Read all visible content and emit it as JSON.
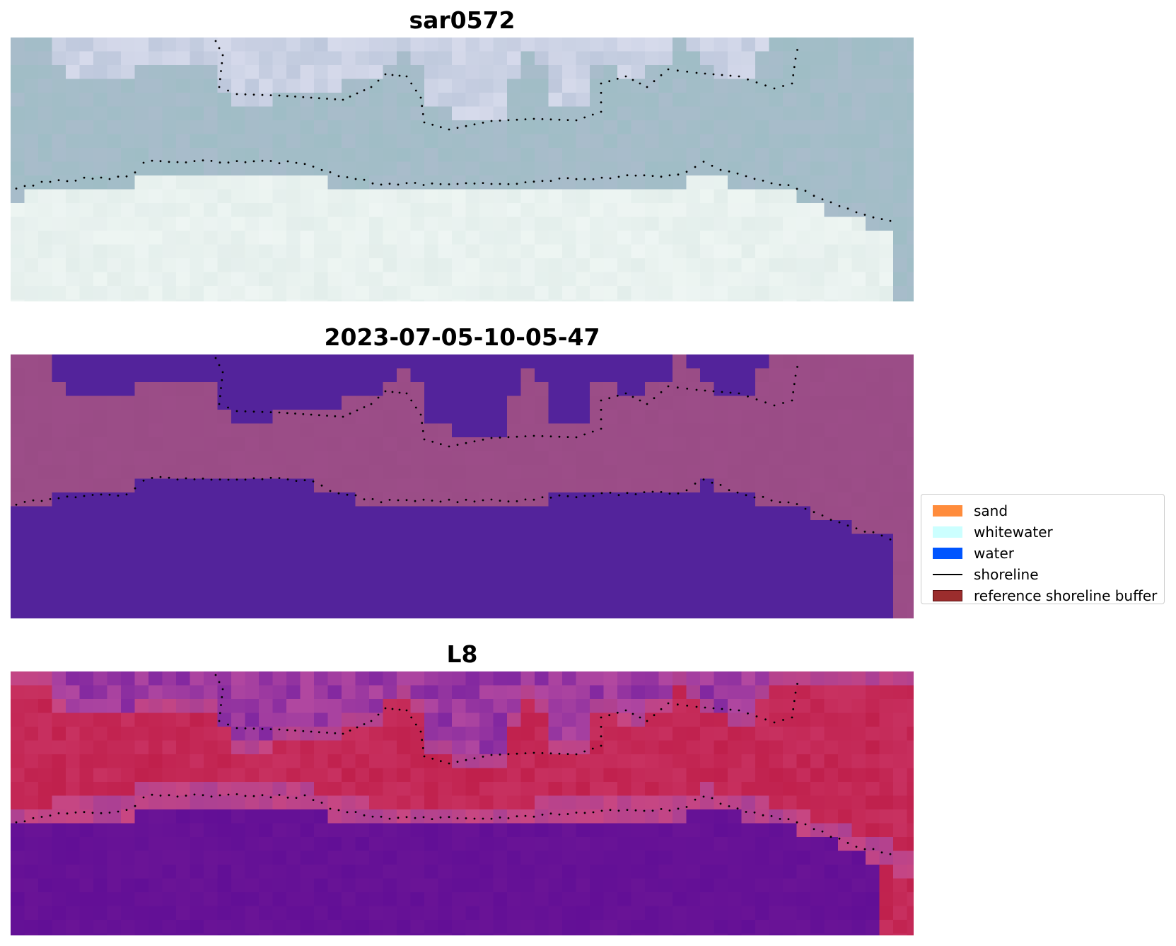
{
  "panels": [
    {
      "title": "sar0572",
      "kind": "rgb"
    },
    {
      "title": "2023-07-05-10-05-47",
      "kind": "classified"
    },
    {
      "title": "L8",
      "kind": "index"
    }
  ],
  "legend": {
    "items": [
      {
        "label": "sand",
        "color": "#ff8c3c",
        "type": "patch"
      },
      {
        "label": "whitewater",
        "color": "#ccffff",
        "type": "patch"
      },
      {
        "label": "water",
        "color": "#0055ff",
        "type": "patch"
      },
      {
        "label": "shoreline",
        "color": "#000000",
        "type": "line"
      },
      {
        "label": "reference shoreline buffer",
        "color": "#9b2d2d",
        "type": "patch",
        "edge": "#5a1010"
      }
    ]
  },
  "colors": {
    "classified_water": "#53239b",
    "classified_land": "#9a4c86",
    "rgb_land": "#a9bccb",
    "rgb_water": "#e3eeeb",
    "index_land": "#c0204c",
    "index_water": "#6a1496",
    "shoreline_points": "#000000"
  }
}
